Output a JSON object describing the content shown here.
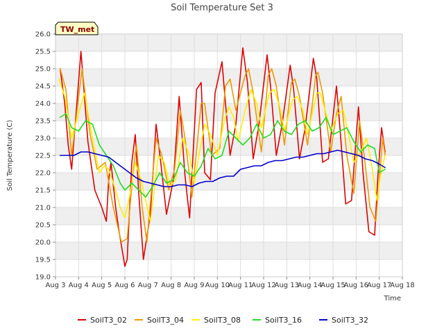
{
  "chart_data": {
    "type": "line",
    "title": "Soil Temperature Set 3",
    "xlabel": "Time",
    "ylabel": "Soil Temperature (C)",
    "site_tag": "TW_met",
    "ylim": [
      19.0,
      26.0
    ],
    "yticks": [
      "19.0",
      "19.5",
      "20.0",
      "20.5",
      "21.0",
      "21.5",
      "22.0",
      "22.5",
      "23.0",
      "23.5",
      "24.0",
      "24.5",
      "25.0",
      "25.5",
      "26.0"
    ],
    "xlim": [
      3,
      18
    ],
    "xticks": [
      "Aug 3",
      "Aug 4",
      "Aug 5",
      "Aug 6",
      "Aug 7",
      "Aug 8",
      "Aug 9",
      "Aug 10",
      "Aug 11",
      "Aug 12",
      "Aug 13",
      "Aug 14",
      "Aug 15",
      "Aug 16",
      "Aug 17",
      "Aug 18"
    ],
    "grid": true,
    "legend_position": "bottom",
    "x_unit": "day of August",
    "series": [
      {
        "name": "SoilT3_02",
        "color": "#dd0000",
        "x": [
          3.2,
          3.4,
          3.55,
          3.7,
          4.1,
          4.4,
          4.7,
          5.0,
          5.2,
          5.3,
          5.4,
          5.6,
          5.75,
          6.0,
          6.1,
          6.3,
          6.45,
          6.6,
          6.8,
          7.1,
          7.35,
          7.55,
          7.8,
          8.1,
          8.35,
          8.6,
          8.8,
          9.1,
          9.3,
          9.45,
          9.7,
          9.9,
          10.2,
          10.35,
          10.55,
          10.8,
          11.1,
          11.3,
          11.55,
          11.8,
          12.15,
          12.3,
          12.55,
          12.8,
          13.15,
          13.3,
          13.55,
          13.8,
          14.15,
          14.3,
          14.55,
          14.8,
          15.15,
          15.3,
          15.55,
          15.8,
          16.1,
          16.3,
          16.55,
          16.8,
          16.95,
          17.1,
          17.25
        ],
        "values": [
          25.0,
          24.0,
          22.8,
          22.1,
          25.5,
          22.9,
          21.5,
          21.0,
          20.6,
          21.8,
          22.3,
          21.0,
          20.3,
          19.3,
          19.5,
          22.3,
          23.1,
          21.4,
          19.5,
          20.8,
          23.4,
          22.3,
          20.8,
          21.8,
          24.2,
          21.9,
          20.7,
          24.4,
          24.6,
          22.0,
          21.8,
          24.3,
          25.2,
          24.0,
          22.5,
          23.4,
          25.6,
          24.6,
          22.4,
          23.4,
          25.4,
          24.5,
          22.5,
          23.4,
          25.1,
          24.4,
          22.4,
          23.3,
          25.3,
          24.7,
          22.3,
          22.4,
          24.5,
          23.3,
          21.1,
          21.2,
          23.9,
          22.0,
          20.3,
          20.2,
          22.0,
          23.3,
          22.6
        ]
      },
      {
        "name": "SoilT3_04",
        "color": "#ee9900",
        "x": [
          3.2,
          3.45,
          3.7,
          4.15,
          4.5,
          4.8,
          5.15,
          5.5,
          5.85,
          6.1,
          6.35,
          6.5,
          6.75,
          6.95,
          7.35,
          7.6,
          7.9,
          8.15,
          8.4,
          8.6,
          8.9,
          9.3,
          9.45,
          9.75,
          10.1,
          10.35,
          10.55,
          10.8,
          11.2,
          11.35,
          11.55,
          11.9,
          12.2,
          12.35,
          12.55,
          12.9,
          13.2,
          13.35,
          13.55,
          13.9,
          14.25,
          14.35,
          14.55,
          14.9,
          15.15,
          15.35,
          15.6,
          15.9,
          16.15,
          16.35,
          16.6,
          16.85,
          17.0,
          17.15,
          17.25
        ],
        "values": [
          25.0,
          24.4,
          22.5,
          25.0,
          23.1,
          22.1,
          22.3,
          21.0,
          20.0,
          20.1,
          22.0,
          22.8,
          21.0,
          20.0,
          23.0,
          22.5,
          21.5,
          22.1,
          23.8,
          23.0,
          21.3,
          24.0,
          24.0,
          22.5,
          22.7,
          24.5,
          24.7,
          23.8,
          24.8,
          25.0,
          24.3,
          22.6,
          24.8,
          25.0,
          24.5,
          22.8,
          24.6,
          24.7,
          24.2,
          22.8,
          24.8,
          24.9,
          24.3,
          22.6,
          23.7,
          24.2,
          22.5,
          21.4,
          23.5,
          22.5,
          21.0,
          20.6,
          21.8,
          23.0,
          22.5
        ]
      },
      {
        "name": "SoilT3_08",
        "color": "#ffee00",
        "x": [
          3.15,
          3.4,
          3.7,
          4.25,
          4.6,
          4.9,
          5.1,
          5.3,
          5.55,
          5.8,
          6.0,
          6.2,
          6.45,
          6.7,
          6.9,
          7.1,
          7.45,
          7.7,
          7.95,
          8.2,
          8.5,
          8.8,
          9.0,
          9.2,
          9.45,
          9.7,
          10.0,
          10.3,
          10.5,
          10.7,
          10.9,
          11.2,
          11.45,
          11.7,
          11.9,
          12.25,
          12.45,
          12.7,
          12.9,
          13.25,
          13.45,
          13.7,
          13.9,
          14.3,
          14.45,
          14.7,
          14.9,
          15.2,
          15.45,
          15.7,
          15.9,
          16.2,
          16.45,
          16.7,
          16.9,
          17.05,
          17.25
        ],
        "values": [
          24.7,
          24.2,
          23.0,
          24.3,
          23.0,
          22.0,
          22.2,
          22.1,
          21.6,
          21.0,
          20.7,
          21.3,
          22.3,
          21.8,
          21.2,
          20.6,
          22.5,
          22.3,
          21.6,
          21.8,
          23.0,
          22.5,
          21.7,
          22.5,
          23.4,
          23.1,
          22.5,
          23.5,
          23.9,
          23.6,
          22.9,
          23.8,
          24.4,
          24.0,
          23.3,
          24.3,
          24.4,
          23.9,
          23.2,
          24.1,
          24.2,
          23.8,
          23.1,
          24.3,
          24.3,
          23.7,
          23.2,
          23.7,
          23.8,
          23.0,
          22.3,
          22.6,
          23.0,
          22.1,
          21.2,
          21.9,
          22.5
        ]
      },
      {
        "name": "SoilT3_16",
        "color": "#22dd22",
        "x": [
          3.2,
          3.45,
          3.7,
          4.0,
          4.3,
          4.6,
          4.9,
          5.2,
          5.5,
          5.8,
          6.0,
          6.3,
          6.6,
          6.9,
          7.2,
          7.5,
          7.8,
          8.1,
          8.4,
          8.7,
          9.0,
          9.3,
          9.6,
          9.9,
          10.2,
          10.5,
          10.8,
          11.1,
          11.4,
          11.7,
          12.0,
          12.3,
          12.6,
          12.9,
          13.2,
          13.5,
          13.8,
          14.1,
          14.4,
          14.7,
          15.0,
          15.3,
          15.6,
          15.9,
          16.2,
          16.5,
          16.8,
          17.0,
          17.25
        ],
        "values": [
          23.6,
          23.7,
          23.3,
          23.2,
          23.5,
          23.4,
          22.8,
          22.5,
          22.2,
          21.7,
          21.5,
          21.7,
          21.5,
          21.3,
          21.6,
          22.0,
          21.7,
          21.8,
          22.3,
          22.0,
          21.9,
          22.2,
          22.7,
          22.4,
          22.5,
          23.2,
          23.0,
          22.8,
          23.0,
          23.4,
          23.0,
          23.1,
          23.5,
          23.2,
          23.1,
          23.4,
          23.5,
          23.2,
          23.3,
          23.6,
          23.1,
          23.2,
          23.3,
          22.9,
          22.6,
          22.8,
          22.7,
          22.0,
          22.1
        ]
      },
      {
        "name": "SoilT3_32",
        "color": "#0000cc",
        "x": [
          3.2,
          3.5,
          3.8,
          4.1,
          4.4,
          4.7,
          5.0,
          5.3,
          5.6,
          5.9,
          6.2,
          6.5,
          6.8,
          7.1,
          7.4,
          7.7,
          8.0,
          8.3,
          8.6,
          8.9,
          9.2,
          9.5,
          9.8,
          10.1,
          10.4,
          10.7,
          11.0,
          11.3,
          11.6,
          11.9,
          12.2,
          12.5,
          12.8,
          13.1,
          13.4,
          13.7,
          14.0,
          14.3,
          14.6,
          14.9,
          15.2,
          15.5,
          15.8,
          16.1,
          16.4,
          16.7,
          17.0,
          17.25
        ],
        "values": [
          22.5,
          22.5,
          22.5,
          22.6,
          22.6,
          22.55,
          22.5,
          22.45,
          22.3,
          22.15,
          22.0,
          21.85,
          21.75,
          21.7,
          21.65,
          21.6,
          21.6,
          21.65,
          21.65,
          21.6,
          21.7,
          21.75,
          21.75,
          21.85,
          21.9,
          21.9,
          22.1,
          22.15,
          22.2,
          22.2,
          22.3,
          22.35,
          22.35,
          22.4,
          22.45,
          22.45,
          22.5,
          22.55,
          22.55,
          22.6,
          22.65,
          22.6,
          22.55,
          22.5,
          22.4,
          22.35,
          22.25,
          22.15
        ]
      }
    ]
  }
}
